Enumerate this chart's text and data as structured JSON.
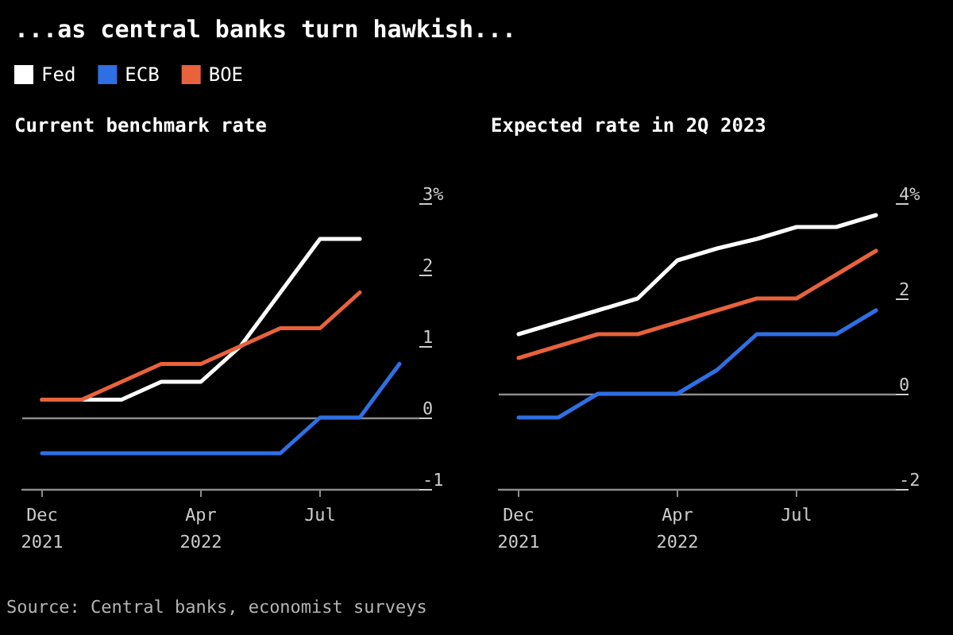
{
  "chart_data": [
    {
      "type": "line",
      "title": "...as central banks turn hawkish...",
      "subtitle": "Current benchmark rate",
      "annotations": [
        "Source: Central banks, economist surveys"
      ],
      "categories": [
        "Dec\n2021",
        null,
        null,
        null,
        "Apr\n2022",
        null,
        null,
        "Jul",
        null,
        null
      ],
      "series": [
        {
          "name": "Fed",
          "color": "#ffffff",
          "values": [
            0.25,
            0.25,
            0.25,
            0.5,
            0.5,
            1.0,
            1.75,
            2.5,
            2.5,
            null
          ]
        },
        {
          "name": "ECB",
          "color": "#2f6fe4",
          "values": [
            -0.5,
            -0.5,
            -0.5,
            -0.5,
            -0.5,
            -0.5,
            -0.5,
            0,
            0,
            0.75
          ]
        },
        {
          "name": "BOE",
          "color": "#e8623c",
          "values": [
            0.25,
            0.25,
            0.5,
            0.75,
            0.75,
            1.0,
            1.25,
            1.25,
            1.75,
            null
          ]
        }
      ],
      "ylim": [
        -1,
        3
      ],
      "yticks": [
        -1,
        0,
        1,
        2,
        {
          "value": 3,
          "label": "3%"
        }
      ],
      "ref_lines": [
        {
          "axis": "y",
          "value": 0,
          "color": "#8c8c8c"
        }
      ],
      "grid": false,
      "legend": "top",
      "marker": "none",
      "line_style": "solid"
    },
    {
      "type": "line",
      "title": "Expected rate in 2Q 2023",
      "categories": [
        "Dec\n2021",
        null,
        null,
        null,
        "Apr\n2022",
        null,
        null,
        "Jul",
        null,
        null
      ],
      "series": [
        {
          "color": "#ffffff",
          "values": [
            1.25,
            1.5,
            1.75,
            2.0,
            2.8,
            3.05,
            3.25,
            3.5,
            3.5,
            3.75
          ]
        },
        {
          "color": "#2f6fe4",
          "values": [
            -0.5,
            -0.5,
            0,
            0,
            0,
            0.5,
            1.25,
            1.25,
            1.25,
            1.75
          ]
        },
        {
          "color": "#e8623c",
          "values": [
            0.75,
            1.0,
            1.25,
            1.25,
            1.5,
            1.75,
            2.0,
            2.0,
            2.5,
            3.0
          ]
        }
      ],
      "ylim": [
        -2,
        4
      ],
      "yticks": [
        -2,
        0,
        2,
        {
          "value": 4,
          "label": "4%"
        }
      ],
      "ref_lines": [
        {
          "axis": "y",
          "value": 0,
          "color": "#8c8c8c"
        }
      ],
      "grid": false,
      "legend": false,
      "marker": "none",
      "line_style": "solid"
    }
  ]
}
